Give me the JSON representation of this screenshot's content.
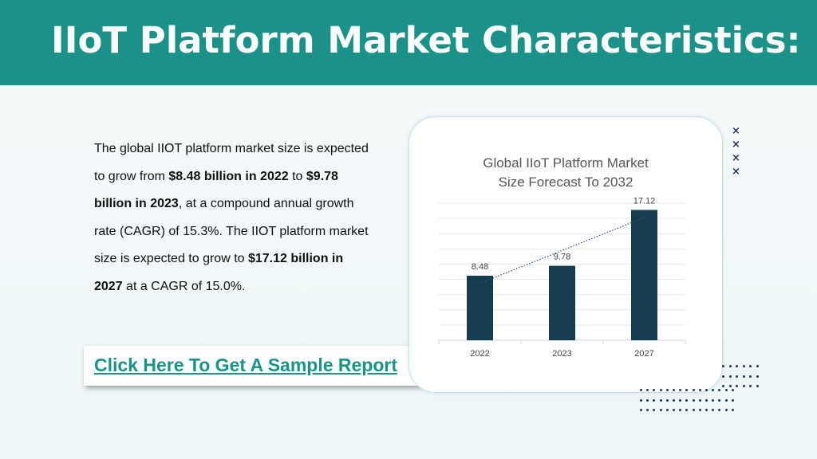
{
  "header": {
    "title": "IIoT Platform Market Characteristics:"
  },
  "body": {
    "segments": [
      {
        "text": "The global IIOT platform market size is expected to grow from ",
        "bold": false
      },
      {
        "text": "$8.48 billion in 2022",
        "bold": true
      },
      {
        "text": " to ",
        "bold": false
      },
      {
        "text": "$9.78 billion in 2023",
        "bold": true
      },
      {
        "text": ", at a compound annual growth rate (CAGR) of 15.3%. The IIOT platform market size is expected to grow to ",
        "bold": false
      },
      {
        "text": "$17.12 billion in 2027",
        "bold": true
      },
      {
        "text": " at a CAGR of 15.0%.",
        "bold": false
      }
    ]
  },
  "cta": {
    "label": "Click Here To Get A Sample Report"
  },
  "chart_data": {
    "type": "bar",
    "title_line1": "Global IIoT Platform Market",
    "title_line2": "Size Forecast To 2032",
    "categories": [
      "2022",
      "2023",
      "2027"
    ],
    "values": [
      8.48,
      9.78,
      17.12
    ],
    "value_labels": [
      "8.48",
      "9.78",
      "17.12"
    ],
    "ylim": [
      0,
      18
    ],
    "grid": true,
    "trendline": true,
    "bar_color": "#163d4e",
    "trend_color": "#2f4f8f"
  },
  "decor": {
    "x_marks": [
      "×",
      "×",
      "×",
      "×"
    ],
    "accent_color": "#1b9287"
  }
}
